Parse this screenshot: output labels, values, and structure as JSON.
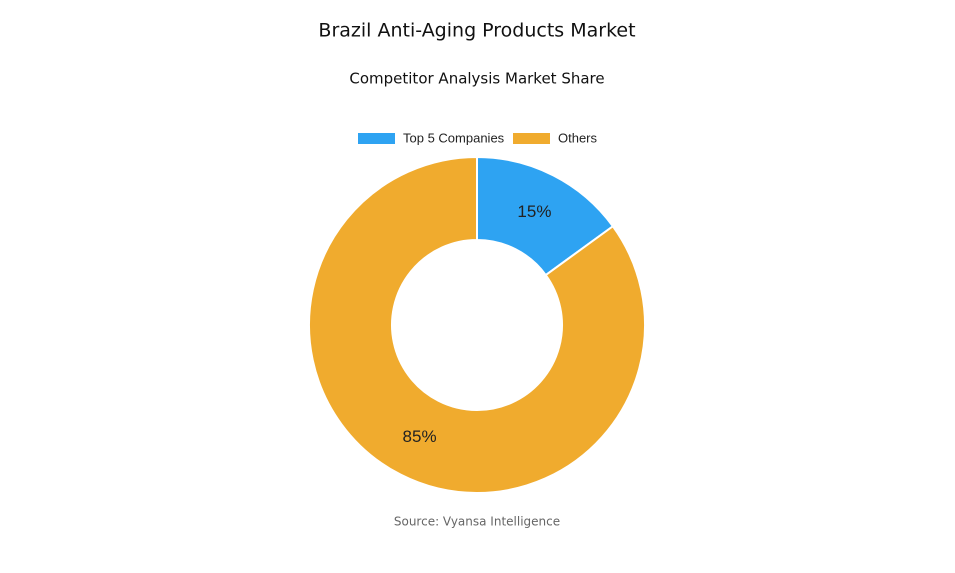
{
  "chart_data": {
    "type": "donut",
    "title": "Brazil Anti-Aging Products Market",
    "subtitle": "Competitor Analysis Market Share",
    "categories": [
      "Top 5 Companies",
      "Others"
    ],
    "values": [
      15,
      85
    ],
    "value_labels": [
      "15%",
      "85%"
    ],
    "colors": [
      "#2ea3f2",
      "#f0ab2e"
    ],
    "source": "Source: Vyansa Intelligence"
  }
}
